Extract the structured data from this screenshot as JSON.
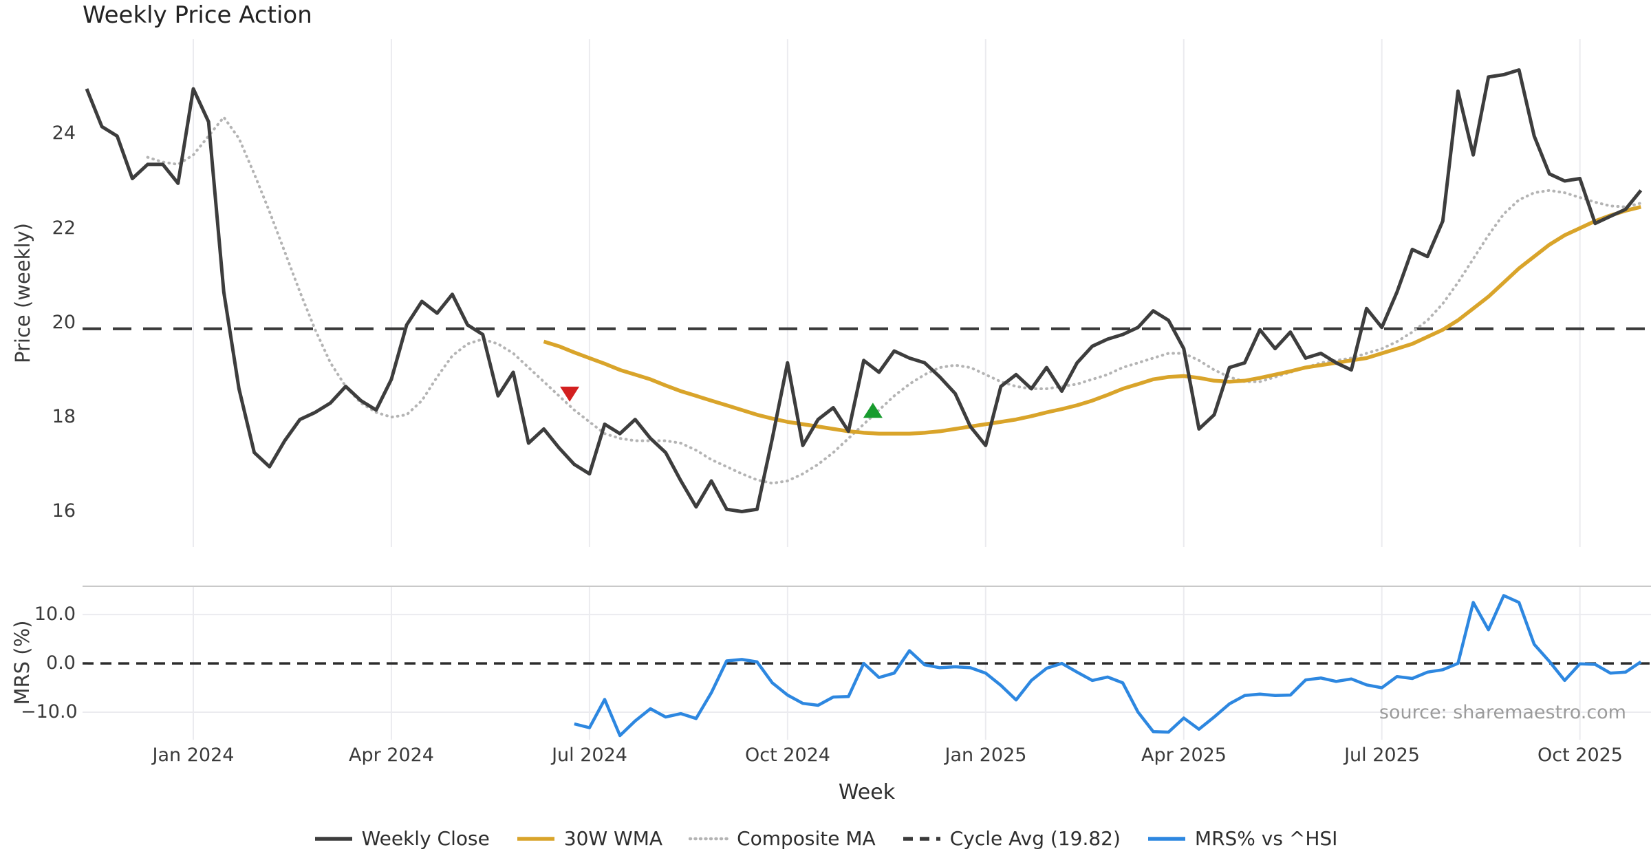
{
  "title": "Weekly Price Action",
  "source_note": "source: sharemaestro.com",
  "x_axis": {
    "label": "Week",
    "tick_labels": [
      "Jan 2024",
      "Apr 2024",
      "Jul 2024",
      "Oct 2024",
      "Jan 2025",
      "Apr 2025",
      "Jul 2025",
      "Oct 2025"
    ]
  },
  "price_axis": {
    "label": "Price (weekly)",
    "tick_labels": [
      "24",
      "22",
      "20",
      "18",
      "16"
    ],
    "tick_values": [
      24,
      22,
      20,
      18,
      16
    ]
  },
  "mrs_axis": {
    "label": "MRS (%)",
    "tick_labels": [
      "10.0",
      "0.0",
      "−10.0"
    ],
    "tick_values": [
      10,
      0,
      -10
    ]
  },
  "legend": {
    "items": [
      {
        "label": "Weekly Close",
        "color": "#3d3d3d",
        "style": "solid"
      },
      {
        "label": "30W WMA",
        "color": "#d9a42a",
        "style": "solid"
      },
      {
        "label": "Composite MA",
        "color": "#b4b4b4",
        "style": "dotted"
      },
      {
        "label": "Cycle Avg (19.82)",
        "color": "#3a3a3a",
        "style": "dashed"
      },
      {
        "label": "MRS% vs ^HSI",
        "color": "#2d87e0",
        "style": "solid"
      }
    ]
  },
  "colors": {
    "weekly_close": "#3d3d3d",
    "wma_30w": "#d9a42a",
    "composite_ma": "#b4b4b4",
    "cycle_avg": "#3a3a3a",
    "mrs_line": "#2d87e0",
    "sell_marker": "#d32020",
    "buy_marker": "#189b2e",
    "gridline": "#ebebef",
    "panel_border": "#c9c9c9"
  },
  "chart_data": [
    {
      "type": "line",
      "title": "Weekly Price Action",
      "ylabel": "Price (weekly)",
      "xlabel": "Week",
      "x_unit": "week_index_from_2023-11",
      "x_tick_weeks": [
        7,
        20,
        33,
        46,
        59,
        72,
        85,
        98
      ],
      "x_tick_labels": [
        "Jan 2024",
        "Apr 2024",
        "Jul 2024",
        "Oct 2024",
        "Jan 2025",
        "Apr 2025",
        "Jul 2025",
        "Oct 2025"
      ],
      "ylim": [
        15.2,
        25.95
      ],
      "grid": "vertical-only",
      "cycle_avg_value": 19.82,
      "series": [
        {
          "name": "Weekly Close",
          "style": "solid",
          "color": "#3d3d3d",
          "start_week": 0,
          "values": [
            24.9,
            24.1,
            23.9,
            23.0,
            23.3,
            23.3,
            22.9,
            24.9,
            24.2,
            20.6,
            18.55,
            17.2,
            16.9,
            17.45,
            17.9,
            18.05,
            18.25,
            18.6,
            18.3,
            18.1,
            18.75,
            19.9,
            20.4,
            20.15,
            20.55,
            19.9,
            19.7,
            18.4,
            18.9,
            17.4,
            17.7,
            17.3,
            16.95,
            16.75,
            17.8,
            17.6,
            17.9,
            17.5,
            17.2,
            16.6,
            16.05,
            16.6,
            16.0,
            15.95,
            16.0,
            17.5,
            19.1,
            17.35,
            17.9,
            18.15,
            17.65,
            19.15,
            18.9,
            19.35,
            19.2,
            19.1,
            18.8,
            18.45,
            17.75,
            17.35,
            18.6,
            18.85,
            18.55,
            19.0,
            18.5,
            19.1,
            19.45,
            19.6,
            19.7,
            19.85,
            20.2,
            20.0,
            19.4,
            17.7,
            18.0,
            19.0,
            19.1,
            19.8,
            19.4,
            19.75,
            19.2,
            19.3,
            19.1,
            18.95,
            20.25,
            19.85,
            20.6,
            21.5,
            21.35,
            22.1,
            24.85,
            23.5,
            25.15,
            25.2,
            25.3,
            23.9,
            23.1,
            22.95,
            23.0,
            22.05,
            22.2,
            22.35,
            22.75
          ]
        },
        {
          "name": "30W WMA",
          "style": "solid",
          "color": "#d9a42a",
          "start_week": 30,
          "values": [
            19.55,
            19.45,
            19.32,
            19.2,
            19.08,
            18.95,
            18.85,
            18.75,
            18.62,
            18.5,
            18.4,
            18.3,
            18.2,
            18.1,
            18.0,
            17.92,
            17.85,
            17.8,
            17.75,
            17.7,
            17.65,
            17.62,
            17.6,
            17.6,
            17.6,
            17.62,
            17.65,
            17.7,
            17.75,
            17.8,
            17.85,
            17.9,
            17.97,
            18.05,
            18.12,
            18.2,
            18.3,
            18.42,
            18.55,
            18.65,
            18.75,
            18.8,
            18.82,
            18.78,
            18.72,
            18.7,
            18.72,
            18.78,
            18.85,
            18.92,
            19.0,
            19.05,
            19.1,
            19.15,
            19.2,
            19.3,
            19.4,
            19.5,
            19.65,
            19.8,
            20.0,
            20.25,
            20.5,
            20.8,
            21.1,
            21.35,
            21.6,
            21.8,
            21.95,
            22.1,
            22.22,
            22.32,
            22.4
          ]
        },
        {
          "name": "Composite MA",
          "style": "dotted",
          "color": "#b4b4b4",
          "start_week": 4,
          "values": [
            23.45,
            23.35,
            23.3,
            23.5,
            23.9,
            24.3,
            23.85,
            23.1,
            22.3,
            21.45,
            20.6,
            19.8,
            19.1,
            18.6,
            18.25,
            18.05,
            17.95,
            18.0,
            18.3,
            18.8,
            19.25,
            19.5,
            19.6,
            19.5,
            19.3,
            19.0,
            18.7,
            18.4,
            18.1,
            17.85,
            17.6,
            17.5,
            17.45,
            17.45,
            17.45,
            17.4,
            17.25,
            17.05,
            16.9,
            16.75,
            16.62,
            16.55,
            16.6,
            16.75,
            16.95,
            17.2,
            17.5,
            17.8,
            18.1,
            18.4,
            18.65,
            18.85,
            19.0,
            19.05,
            19.0,
            18.85,
            18.7,
            18.6,
            18.55,
            18.55,
            18.6,
            18.65,
            18.75,
            18.85,
            19.0,
            19.1,
            19.2,
            19.3,
            19.3,
            19.15,
            18.95,
            18.8,
            18.7,
            18.7,
            18.8,
            18.9,
            19.0,
            19.1,
            19.15,
            19.2,
            19.3,
            19.4,
            19.55,
            19.75,
            20.0,
            20.35,
            20.8,
            21.3,
            21.8,
            22.25,
            22.55,
            22.7,
            22.75,
            22.7,
            22.6,
            22.5,
            22.42,
            22.4,
            22.48
          ]
        },
        {
          "name": "Cycle Avg (19.82)",
          "style": "dashed",
          "color": "#3a3a3a",
          "constant_value": 19.82
        }
      ],
      "markers": [
        {
          "name": "sell-signal",
          "shape": "triangle-down",
          "color": "#d32020",
          "week": 31.7,
          "value": 18.45
        },
        {
          "name": "buy-signal",
          "shape": "triangle-up",
          "color": "#189b2e",
          "week": 51.6,
          "value": 18.08
        }
      ]
    },
    {
      "type": "line",
      "ylabel": "MRS (%)",
      "ylim": [
        -15.65,
        15.95
      ],
      "zero_line": 0.0,
      "h_gridlines": [
        10,
        -10
      ],
      "x_tick_weeks": [
        7,
        20,
        33,
        46,
        59,
        72,
        85,
        98
      ],
      "series": [
        {
          "name": "MRS% vs ^HSI",
          "style": "solid",
          "color": "#2d87e0",
          "start_week": 32,
          "values": [
            -12.4,
            -13.2,
            -7.4,
            -14.8,
            -11.8,
            -9.3,
            -11.0,
            -10.3,
            -11.3,
            -6.0,
            0.5,
            0.8,
            0.3,
            -4.0,
            -6.5,
            -8.2,
            -8.6,
            -6.9,
            -6.8,
            0.0,
            -2.9,
            -2.0,
            2.6,
            -0.3,
            -0.9,
            -0.7,
            -0.9,
            -2.0,
            -4.5,
            -7.5,
            -3.5,
            -1.0,
            0.0,
            -1.8,
            -3.5,
            -2.8,
            -4.0,
            -10.0,
            -14.0,
            -14.1,
            -11.2,
            -13.5,
            -11.0,
            -8.3,
            -6.6,
            -6.3,
            -6.6,
            -6.5,
            -3.4,
            -3.0,
            -3.7,
            -3.2,
            -4.4,
            -5.0,
            -2.7,
            -3.1,
            -1.8,
            -1.3,
            0.0,
            12.5,
            6.9,
            13.9,
            12.5,
            3.9,
            0.4,
            -3.5,
            -0.1,
            -0.2,
            -2.0,
            -1.8,
            0.3
          ]
        }
      ]
    }
  ]
}
